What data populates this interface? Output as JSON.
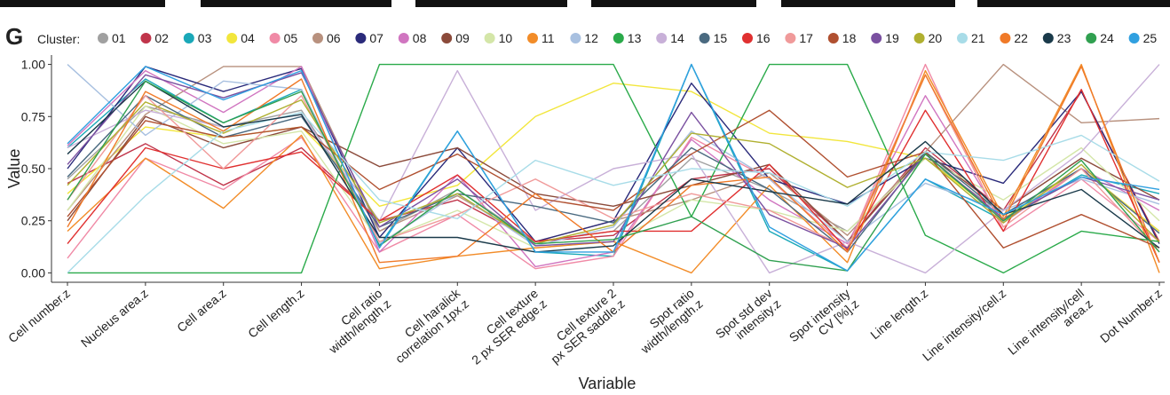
{
  "panel_label": "G",
  "chart_data": {
    "type": "line",
    "legend_title": "Cluster:",
    "x_label": "Variable",
    "y_label": "Value",
    "categories": [
      "Cell number.z",
      "Nucleus area.z",
      "Cell area.z",
      "Cell length.z",
      "Cell ratio\nwidth/length.z",
      "Cell haralick\ncorrelation 1px.z",
      "Cell texture\n2 px SER edge.z",
      "Cell texture 2\npx SER saddle.z",
      "Spot ratio\nwidth/length.z",
      "Spot std dev\nintensity.z",
      "Spot intensity\nCV [%].z",
      "Line length.z",
      "Line intensity/cell.z",
      "Line intensity/cell\narea.z",
      "Dot Number.z"
    ],
    "ylim": [
      -0.045,
      1.045
    ],
    "yticks": [
      {
        "value": 0,
        "label": "0.00"
      },
      0.25,
      {
        "value": 0.5,
        "label": "0.50"
      },
      0.75,
      {
        "value": 1,
        "label": "1.00"
      }
    ],
    "grid": false,
    "legend": "top",
    "series": [
      {
        "name": "01",
        "color": "#a0a0a0",
        "values": [
          0.45,
          0.8,
          0.7,
          0.78,
          0.2,
          0.4,
          0.15,
          0.2,
          0.55,
          0.4,
          0.2,
          0.55,
          0.28,
          0.5,
          0.2
        ]
      },
      {
        "name": "02",
        "color": "#c0344a",
        "values": [
          0.43,
          0.62,
          0.42,
          0.6,
          0.25,
          0.35,
          0.15,
          0.18,
          0.45,
          0.5,
          0.15,
          0.6,
          0.3,
          0.87,
          0.15
        ]
      },
      {
        "name": "03",
        "color": "#1aa8b8",
        "values": [
          0.6,
          0.93,
          0.72,
          0.88,
          0.13,
          0.68,
          0.1,
          0.08,
          1.0,
          0.2,
          0.01,
          0.45,
          0.25,
          0.47,
          0.38
        ]
      },
      {
        "name": "04",
        "color": "#f2e63c",
        "values": [
          0.38,
          0.7,
          0.65,
          0.7,
          0.32,
          0.42,
          0.75,
          0.91,
          0.87,
          0.67,
          0.63,
          0.55,
          0.26,
          0.5,
          0.2
        ]
      },
      {
        "name": "05",
        "color": "#f08aa6",
        "values": [
          0.07,
          0.55,
          0.4,
          0.65,
          0.1,
          0.28,
          0.02,
          0.08,
          0.65,
          0.45,
          0.12,
          1.0,
          0.2,
          0.45,
          0.15
        ]
      },
      {
        "name": "06",
        "color": "#b8917e",
        "values": [
          0.3,
          0.76,
          0.99,
          0.99,
          0.2,
          0.37,
          0.15,
          0.25,
          0.35,
          0.48,
          0.18,
          0.58,
          1.0,
          0.72,
          0.74
        ]
      },
      {
        "name": "07",
        "color": "#2a2a7a",
        "values": [
          0.5,
          0.99,
          0.87,
          0.98,
          0.17,
          0.6,
          0.15,
          0.25,
          0.91,
          0.45,
          0.33,
          0.55,
          0.43,
          0.87,
          0.14
        ]
      },
      {
        "name": "08",
        "color": "#d075c0",
        "values": [
          0.61,
          0.97,
          0.77,
          0.99,
          0.1,
          0.47,
          0.03,
          0.1,
          0.64,
          0.35,
          0.14,
          0.85,
          0.24,
          0.5,
          0.3
        ]
      },
      {
        "name": "09",
        "color": "#8b4a3a",
        "values": [
          0.25,
          0.75,
          0.6,
          0.7,
          0.51,
          0.6,
          0.38,
          0.32,
          0.42,
          0.52,
          0.15,
          0.58,
          0.3,
          0.55,
          0.35
        ]
      },
      {
        "name": "10",
        "color": "#d4e6a8",
        "values": [
          0.3,
          0.8,
          0.62,
          0.68,
          0.15,
          0.3,
          0.12,
          0.15,
          0.35,
          0.3,
          0.2,
          0.55,
          0.35,
          0.6,
          0.25
        ]
      },
      {
        "name": "11",
        "color": "#f28c28",
        "values": [
          0.2,
          0.55,
          0.31,
          0.66,
          0.02,
          0.08,
          0.12,
          0.15,
          0.0,
          0.42,
          0.05,
          0.97,
          0.27,
          1.0,
          0.0
        ]
      },
      {
        "name": "12",
        "color": "#a8c0e0",
        "values": [
          1.0,
          0.66,
          0.92,
          0.88,
          0.14,
          0.38,
          0.13,
          0.22,
          0.68,
          0.45,
          0.15,
          0.43,
          0.3,
          0.45,
          0.33
        ]
      },
      {
        "name": "13",
        "color": "#2aaa4a",
        "values": [
          0,
          0,
          0,
          0,
          1,
          1,
          1,
          1,
          0.27,
          1,
          1,
          0.18,
          0,
          0.2,
          0.15
        ]
      },
      {
        "name": "14",
        "color": "#c8b0d8",
        "values": [
          0.6,
          0.78,
          0.7,
          0.76,
          0.25,
          0.97,
          0.3,
          0.5,
          0.57,
          0.0,
          0.15,
          0.0,
          0.3,
          0.58,
          1.0
        ]
      },
      {
        "name": "15",
        "color": "#4a6a80",
        "values": [
          0.46,
          0.85,
          0.65,
          0.75,
          0.22,
          0.38,
          0.32,
          0.24,
          0.6,
          0.4,
          0.1,
          0.58,
          0.28,
          0.5,
          0.19
        ]
      },
      {
        "name": "16",
        "color": "#e03030",
        "values": [
          0.14,
          0.6,
          0.5,
          0.58,
          0.25,
          0.47,
          0.15,
          0.2,
          0.2,
          0.52,
          0.11,
          0.78,
          0.2,
          0.88,
          0.05
        ]
      },
      {
        "name": "17",
        "color": "#f09a9a",
        "values": [
          0.35,
          0.85,
          0.5,
          0.85,
          0.15,
          0.28,
          0.45,
          0.26,
          0.38,
          0.3,
          0.12,
          0.95,
          0.22,
          0.5,
          0.1
        ]
      },
      {
        "name": "18",
        "color": "#b05030",
        "values": [
          0.27,
          0.73,
          0.65,
          0.7,
          0.4,
          0.57,
          0.36,
          0.3,
          0.57,
          0.78,
          0.46,
          0.58,
          0.12,
          0.28,
          0.12
        ]
      },
      {
        "name": "19",
        "color": "#7a50a0",
        "values": [
          0.52,
          0.95,
          0.84,
          0.96,
          0.22,
          0.45,
          0.13,
          0.15,
          0.77,
          0.28,
          0.12,
          0.57,
          0.26,
          0.46,
          0.35
        ]
      },
      {
        "name": "20",
        "color": "#b0b030",
        "values": [
          0.42,
          0.82,
          0.67,
          0.83,
          0.24,
          0.38,
          0.14,
          0.23,
          0.67,
          0.62,
          0.41,
          0.55,
          0.24,
          0.52,
          0.15
        ]
      },
      {
        "name": "21",
        "color": "#a8dce8",
        "values": [
          0.0,
          0.37,
          0.68,
          0.77,
          0.35,
          0.26,
          0.54,
          0.42,
          0.5,
          0.48,
          0.32,
          0.58,
          0.54,
          0.66,
          0.44
        ]
      },
      {
        "name": "22",
        "color": "#f07a28",
        "values": [
          0.22,
          0.87,
          0.68,
          0.93,
          0.05,
          0.08,
          0.38,
          0.1,
          0.42,
          0.46,
          0.1,
          0.95,
          0.25,
          0.99,
          0.05
        ]
      },
      {
        "name": "23",
        "color": "#1a3a4a",
        "values": [
          0.57,
          0.92,
          0.7,
          0.76,
          0.17,
          0.17,
          0.1,
          0.13,
          0.45,
          0.39,
          0.33,
          0.63,
          0.28,
          0.4,
          0.12
        ]
      },
      {
        "name": "24",
        "color": "#30a050",
        "values": [
          0.35,
          0.92,
          0.72,
          0.87,
          0.13,
          0.4,
          0.14,
          0.16,
          0.27,
          0.06,
          0.01,
          0.57,
          0.25,
          0.54,
          0.1
        ]
      },
      {
        "name": "25",
        "color": "#30a0e0",
        "values": [
          0.62,
          0.99,
          0.83,
          0.97,
          0.12,
          0.68,
          0.1,
          0.1,
          1.0,
          0.22,
          0.01,
          0.45,
          0.28,
          0.46,
          0.4
        ]
      }
    ]
  }
}
